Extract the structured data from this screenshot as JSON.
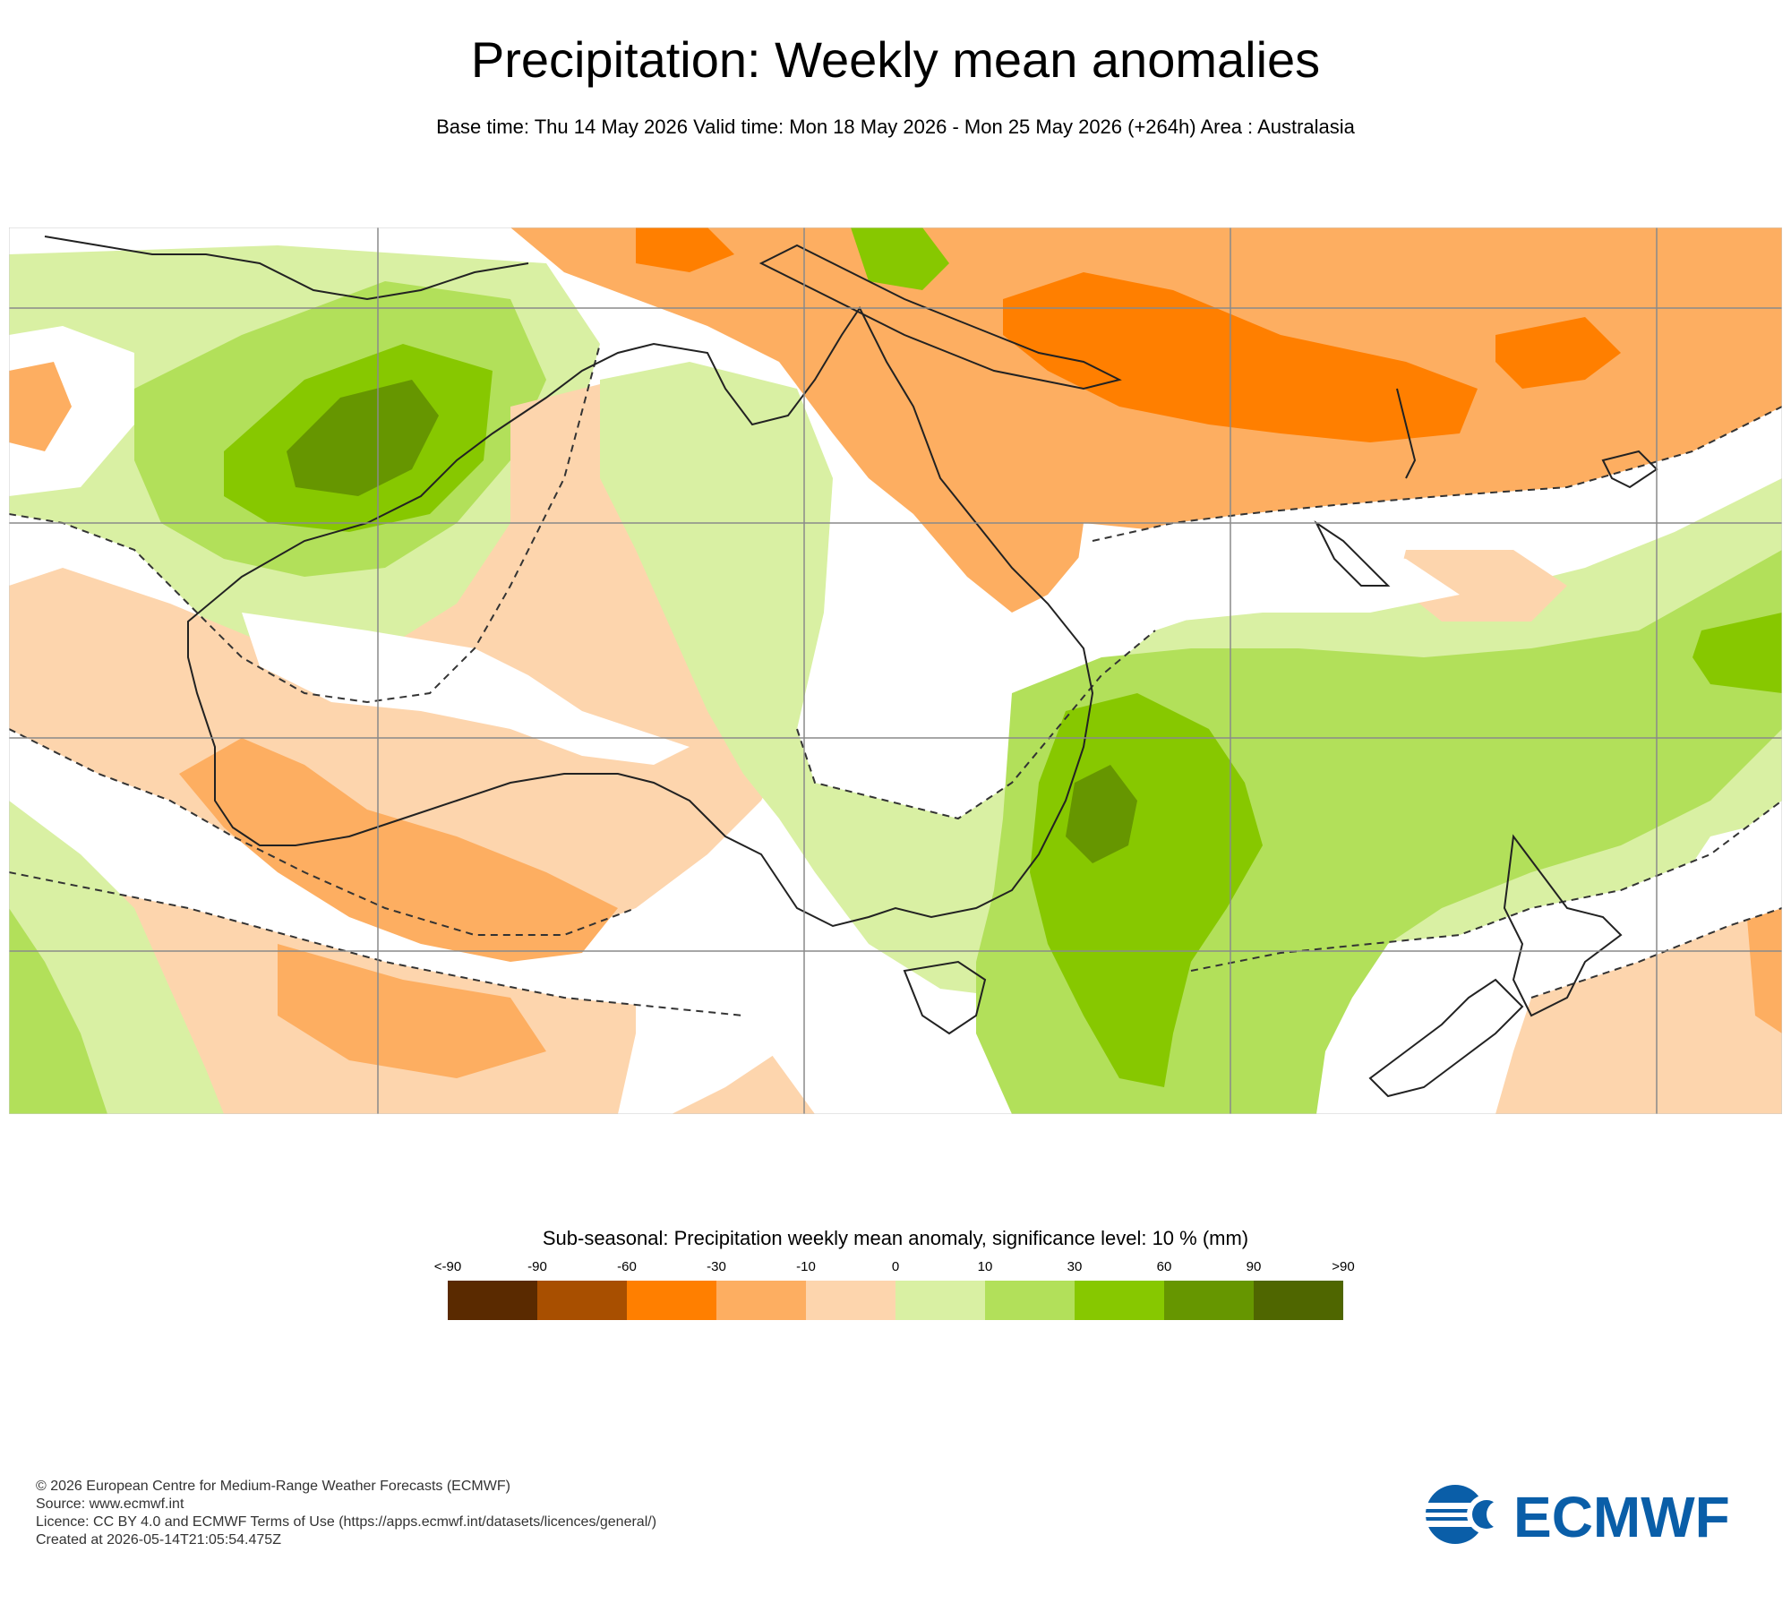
{
  "title": "Precipitation: Weekly mean anomalies",
  "subtitle": "Base time: Thu 14 May 2026 Valid time: Mon 18 May 2026 - Mon 25 May 2026 (+264h) Area : Australasia",
  "legend": {
    "title": "Sub-seasonal: Precipitation weekly mean anomaly, significance level: 10 % (mm)",
    "ticks": [
      "<-90",
      "-90",
      "-60",
      "-30",
      "-10",
      "0",
      "10",
      "30",
      "60",
      "90",
      ">90"
    ],
    "colors": [
      "#5a2a00",
      "#a84f00",
      "#ff7f00",
      "#fdae61",
      "#fdd5ad",
      "#d9f0a3",
      "#b2e05a",
      "#87c800",
      "#669600",
      "#4f6600"
    ]
  },
  "map": {
    "area": "Australasia",
    "colors": {
      "sea_neutral": "#ffffff",
      "dry_light": "#fdd5ad",
      "dry_mid": "#fdae61",
      "dry_strong": "#ff7f00",
      "wet_light": "#d9f0a3",
      "wet_mid": "#b2e05a",
      "wet_strong": "#87c800",
      "wet_heavy": "#669600",
      "coast": "#222222",
      "grid": "#8a8a8a"
    }
  },
  "footer": {
    "copyright": "© 2026 European Centre for Medium-Range Weather Forecasts (ECMWF)",
    "source": "Source: www.ecmwf.int",
    "licence": "Licence: CC BY 4.0 and ECMWF Terms of Use (https://apps.ecmwf.int/datasets/licences/general/)",
    "created": "Created at 2026-05-14T21:05:54.475Z"
  },
  "logo": {
    "text": "ECMWF",
    "color": "#0a5ea8",
    "icon": "ecmwf-logo-icon"
  }
}
